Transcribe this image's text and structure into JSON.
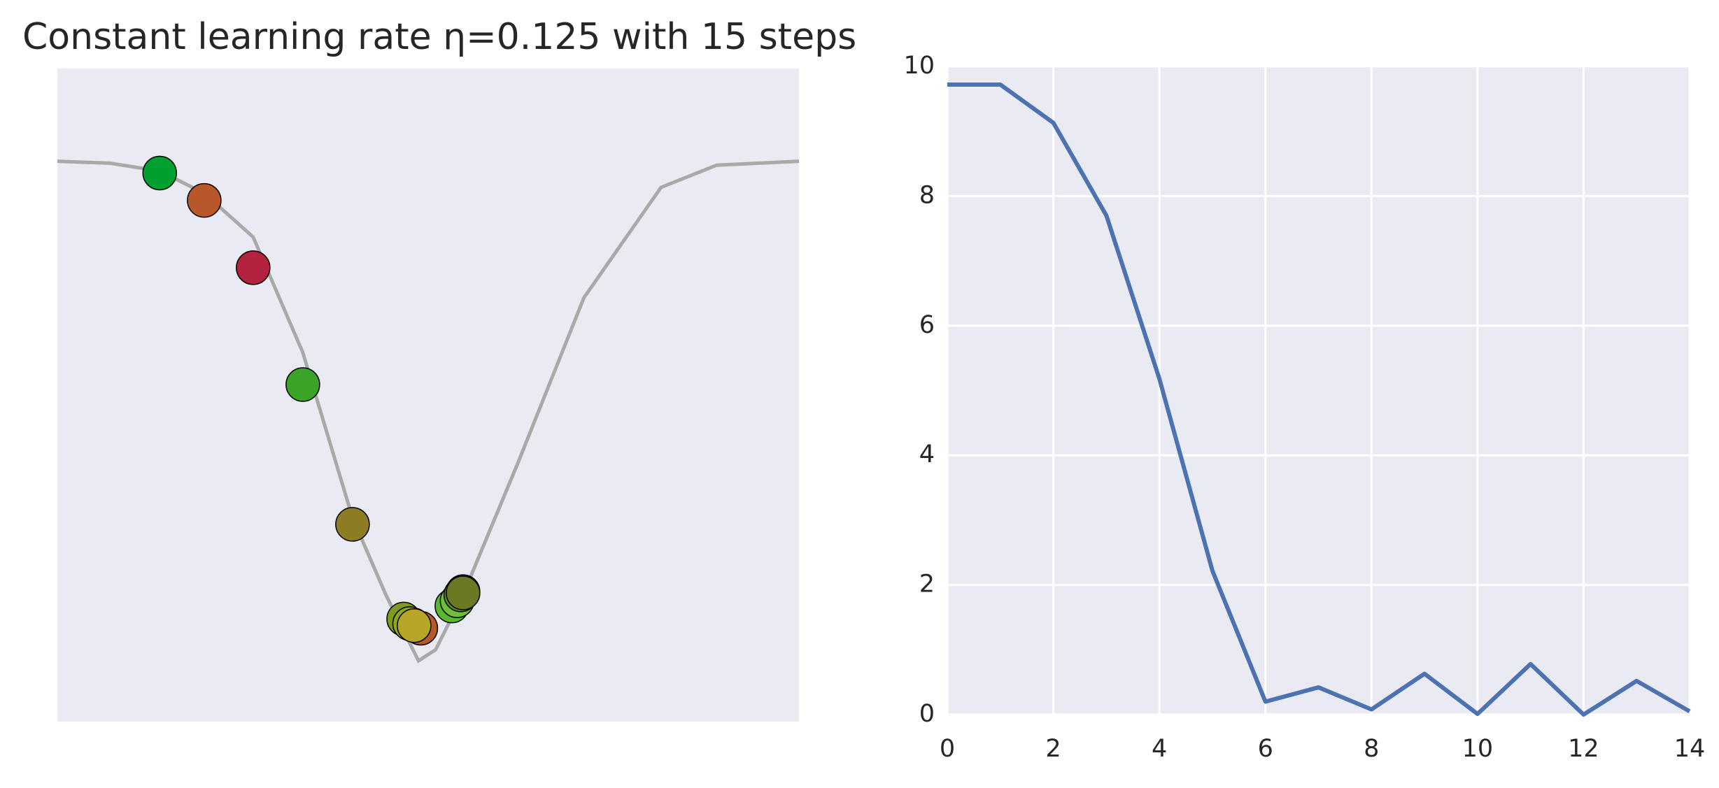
{
  "chart_data": [
    {
      "type": "scatter",
      "title": "Constant learning rate η=0.125 with 15 steps",
      "xlim": [
        0,
        10
      ],
      "ylim": [
        0,
        10
      ],
      "curve_color": "#a9a9a9",
      "curve_x": [
        0,
        0.71,
        1.38,
        1.98,
        2.64,
        3.31,
        3.98,
        4.43,
        4.65,
        4.87,
        5.1,
        5.47,
        6.21,
        7.1,
        8.14,
        8.89,
        10
      ],
      "curve_y": [
        8.58,
        8.55,
        8.43,
        8.09,
        7.42,
        5.65,
        3.12,
        1.94,
        1.43,
        0.93,
        1.1,
        1.94,
        3.96,
        6.49,
        8.18,
        8.52,
        8.58
      ],
      "x": [
        1.38,
        1.98,
        2.64,
        3.31,
        3.98,
        4.67,
        4.8,
        5.47,
        4.9,
        5.32,
        5.39,
        4.75,
        5.44,
        4.81,
        5.47
      ],
      "y": [
        8.4,
        7.98,
        6.95,
        5.16,
        3.02,
        1.57,
        1.48,
        1.99,
        1.43,
        1.77,
        1.85,
        1.5,
        1.94,
        1.47,
        1.97
      ],
      "colors": [
        "#00a030",
        "#b8572a",
        "#b52240",
        "#3aa328",
        "#8c7d24",
        "#7f9a20",
        "#a0a020",
        "#7a2fb0",
        "#b35a28",
        "#58b830",
        "#6cc03a",
        "#8ea81f",
        "#5f8a28",
        "#b8a528",
        "#6b7a22"
      ]
    },
    {
      "type": "line",
      "x": [
        0,
        1,
        2,
        3,
        4,
        5,
        6,
        7,
        8,
        9,
        10,
        11,
        12,
        13,
        14
      ],
      "values": [
        9.72,
        9.72,
        9.13,
        7.7,
        5.18,
        2.22,
        0.2,
        0.42,
        0.08,
        0.63,
        0.01,
        0.78,
        0.0,
        0.52,
        0.05
      ],
      "color": "#4c72b0",
      "xlim": [
        0,
        14
      ],
      "ylim": [
        0,
        10
      ],
      "xticks": [
        0,
        2,
        4,
        6,
        8,
        10,
        12,
        14
      ],
      "yticks": [
        0,
        2,
        4,
        6,
        8,
        10
      ],
      "grid": true
    }
  ]
}
